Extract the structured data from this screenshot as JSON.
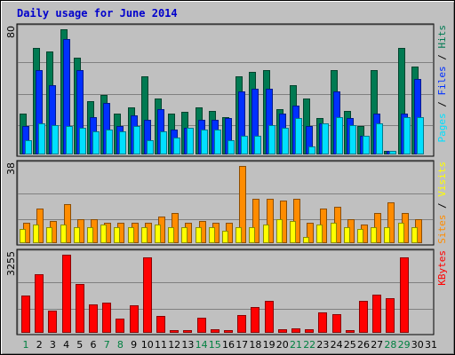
{
  "chart_data": {
    "type": "bar",
    "title": "Daily usage for June 2014",
    "categories": [
      "1",
      "2",
      "3",
      "4",
      "5",
      "6",
      "7",
      "8",
      "9",
      "10",
      "11",
      "12",
      "13",
      "14",
      "15",
      "16",
      "17",
      "18",
      "19",
      "20",
      "21",
      "22",
      "23",
      "24",
      "25",
      "26",
      "27",
      "28",
      "29",
      "30",
      "31"
    ],
    "weekend_days": [
      "1",
      "7",
      "8",
      "14",
      "15",
      "21",
      "22",
      "28",
      "29"
    ],
    "colors": {
      "hits": "#007a52",
      "files": "#0030ff",
      "pages": "#00e0ff",
      "visits": "#ffff00",
      "sites": "#ff8c00",
      "kbytes": "#ff0000",
      "weekday_label": "#000000",
      "weekend_label": "#008040",
      "title": "#0000cc",
      "background": "#c0c0c0"
    },
    "panels": [
      {
        "id": "usage",
        "ymax": 80,
        "ymax_label": "80",
        "legend": [
          {
            "text": "Pages",
            "color": "#00e0ff"
          },
          {
            "text": " / ",
            "color": "#000000"
          },
          {
            "text": "Files",
            "color": "#0030ff"
          },
          {
            "text": " / ",
            "color": "#000000"
          },
          {
            "text": "Hits",
            "color": "#007a52"
          }
        ],
        "series": [
          {
            "name": "Hits",
            "key": "hits",
            "values": [
              26,
              68,
              66,
              80,
              62,
              34,
              38,
              26,
              30,
              50,
              36,
              26,
              27,
              30,
              28,
              24,
              50,
              53,
              54,
              29,
              44,
              36,
              23,
              54,
              28,
              18,
              54,
              2,
              68,
              56,
              0
            ]
          },
          {
            "name": "Files",
            "key": "files",
            "values": [
              18,
              54,
              44,
              74,
              54,
              24,
              33,
              18,
              25,
              22,
              29,
              16,
              17,
              22,
              22,
              23,
              40,
              42,
              42,
              26,
              31,
              18,
              20,
              40,
              23,
              12,
              26,
              2,
              26,
              48,
              0
            ]
          },
          {
            "name": "Pages",
            "key": "pages",
            "values": [
              9,
              20,
              19,
              18,
              17,
              15,
              16,
              15,
              18,
              9,
              15,
              11,
              17,
              16,
              16,
              9,
              12,
              12,
              19,
              17,
              23,
              5,
              20,
              24,
              19,
              12,
              20,
              2,
              24,
              24,
              0
            ]
          }
        ]
      },
      {
        "id": "visits",
        "ymax": 38,
        "ymax_label": "38",
        "legend": [
          {
            "text": "Sites",
            "color": "#ff8c00"
          },
          {
            "text": " / ",
            "color": "#000000"
          },
          {
            "text": "Visits",
            "color": "#ffff00"
          }
        ],
        "series": [
          {
            "name": "Sites",
            "key": "sites",
            "values": [
              10,
              17,
              11,
              19,
              12,
              12,
              10,
              10,
              10,
              10,
              13,
              15,
              10,
              11,
              10,
              10,
              38,
              22,
              22,
              21,
              22,
              10,
              17,
              18,
              12,
              9,
              15,
              20,
              15,
              12,
              0
            ]
          },
          {
            "name": "Visits",
            "key": "visits",
            "values": [
              7,
              9,
              8,
              9,
              8,
              8,
              9,
              8,
              8,
              8,
              9,
              8,
              8,
              8,
              8,
              6,
              8,
              8,
              9,
              12,
              11,
              3,
              9,
              10,
              8,
              7,
              8,
              8,
              10,
              8,
              0
            ]
          }
        ]
      },
      {
        "id": "kbytes",
        "ymax": 3255,
        "ymax_label": "3255",
        "legend": [
          {
            "text": "KBytes",
            "color": "#ff0000"
          }
        ],
        "series": [
          {
            "name": "KBytes",
            "key": "kbytes",
            "values": [
              1550,
              2450,
              910,
              3255,
              2030,
              1180,
              1270,
              600,
              1160,
              3150,
              690,
              120,
              100,
              630,
              150,
              110,
              730,
              1070,
              1330,
              160,
              170,
              160,
              840,
              780,
              110,
              1340,
              1600,
              1450,
              3150,
              0,
              0
            ]
          }
        ]
      }
    ]
  }
}
